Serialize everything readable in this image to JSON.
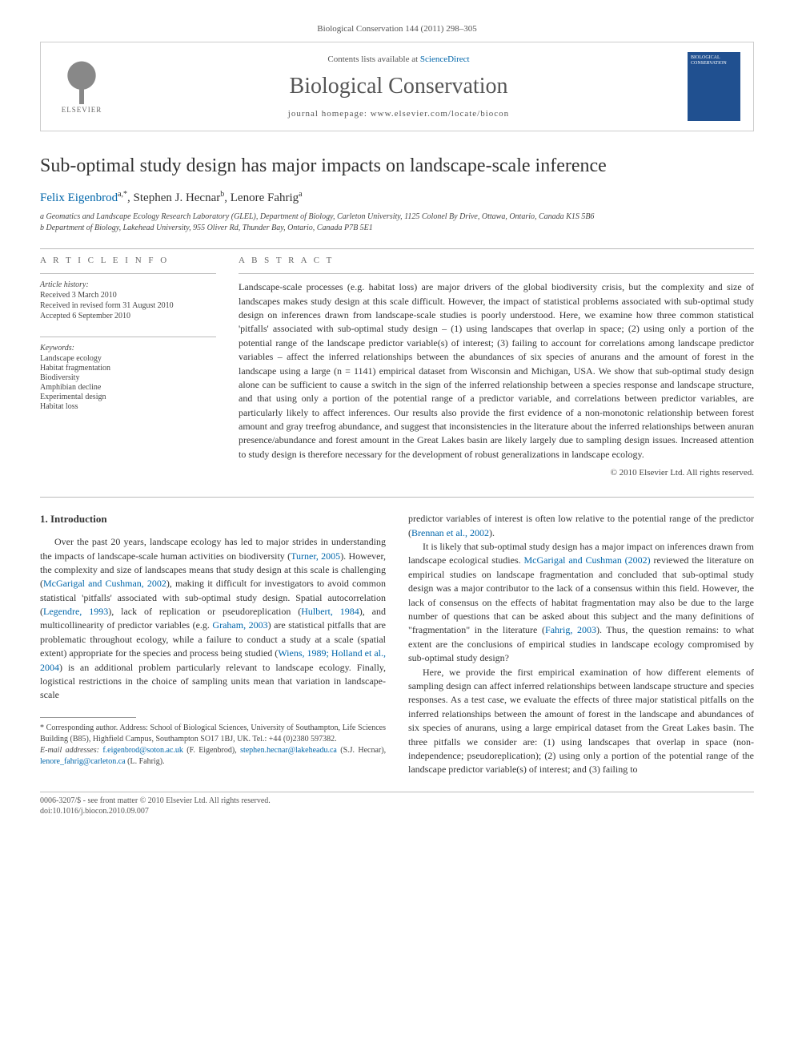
{
  "journal_ref": "Biological Conservation 144 (2011) 298–305",
  "header": {
    "contents_prefix": "Contents lists available at ",
    "contents_link": "ScienceDirect",
    "journal_title": "Biological Conservation",
    "homepage_prefix": "journal homepage: ",
    "homepage_url": "www.elsevier.com/locate/biocon",
    "publisher": "ELSEVIER",
    "cover_label": "BIOLOGICAL CONSERVATION"
  },
  "title": "Sub-optimal study design has major impacts on landscape-scale inference",
  "authors_html": "Felix Eigenbrod",
  "authors": [
    {
      "name": "Felix Eigenbrod",
      "sup": "a,*",
      "link": true
    },
    {
      "name": "Stephen J. Hecnar",
      "sup": "b",
      "link": false
    },
    {
      "name": "Lenore Fahrig",
      "sup": "a",
      "link": false
    }
  ],
  "affiliations": [
    "a Geomatics and Landscape Ecology Research Laboratory (GLEL), Department of Biology, Carleton University, 1125 Colonel By Drive, Ottawa, Ontario, Canada K1S 5B6",
    "b Department of Biology, Lakehead University, 955 Oliver Rd, Thunder Bay, Ontario, Canada P7B 5E1"
  ],
  "article_info_heading": "A R T I C L E   I N F O",
  "history": {
    "label": "Article history:",
    "lines": [
      "Received 3 March 2010",
      "Received in revised form 31 August 2010",
      "Accepted 6 September 2010"
    ]
  },
  "keywords": {
    "label": "Keywords:",
    "items": [
      "Landscape ecology",
      "Habitat fragmentation",
      "Biodiversity",
      "Amphibian decline",
      "Experimental design",
      "Habitat loss"
    ]
  },
  "abstract_heading": "A B S T R A C T",
  "abstract": "Landscape-scale processes (e.g. habitat loss) are major drivers of the global biodiversity crisis, but the complexity and size of landscapes makes study design at this scale difficult. However, the impact of statistical problems associated with sub-optimal study design on inferences drawn from landscape-scale studies is poorly understood. Here, we examine how three common statistical 'pitfalls' associated with sub-optimal study design – (1) using landscapes that overlap in space; (2) using only a portion of the potential range of the landscape predictor variable(s) of interest; (3) failing to account for correlations among landscape predictor variables – affect the inferred relationships between the abundances of six species of anurans and the amount of forest in the landscape using a large (n = 1141) empirical dataset from Wisconsin and Michigan, USA. We show that sub-optimal study design alone can be sufficient to cause a switch in the sign of the inferred relationship between a species response and landscape structure, and that using only a portion of the potential range of a predictor variable, and correlations between predictor variables, are particularly likely to affect inferences. Our results also provide the first evidence of a non-monotonic relationship between forest amount and gray treefrog abundance, and suggest that inconsistencies in the literature about the inferred relationships between anuran presence/abundance and forest amount in the Great Lakes basin are likely largely due to sampling design issues. Increased attention to study design is therefore necessary for the development of robust generalizations in landscape ecology.",
  "copyright": "© 2010 Elsevier Ltd. All rights reserved.",
  "section1_heading": "1. Introduction",
  "intro_para1_pre": "Over the past 20 years, landscape ecology has led to major strides in understanding the impacts of landscape-scale human activities on biodiversity (",
  "intro_cite_turner": "Turner, 2005",
  "intro_para1_mid1": "). However, the complexity and size of landscapes means that study design at this scale is challenging (",
  "intro_cite_mcgarigal": "McGarigal and Cushman, 2002",
  "intro_para1_mid2": "), making it difficult for investigators to avoid common statistical 'pitfalls' associated with sub-optimal study design. Spatial autocorrelation (",
  "intro_cite_legendre": "Legendre, 1993",
  "intro_para1_mid3": "), lack of replication or pseudoreplication (",
  "intro_cite_hulbert": "Hulbert, 1984",
  "intro_para1_mid4": "), and multicollinearity of predictor variables (e.g. ",
  "intro_cite_graham": "Graham, 2003",
  "intro_para1_mid5": ") are statistical pitfalls that are problematic throughout ecology, while a failure to conduct a study at a scale (spatial extent) appropriate for the species and process being studied (",
  "intro_cite_wiens": "Wiens, 1989; Holland et al., 2004",
  "intro_para1_post": ") is an additional problem particularly relevant to landscape ecology. Finally, logistical restrictions in the choice of sampling units mean that variation in landscape-scale",
  "col2_para1_pre": "predictor variables of interest is often low relative to the potential range of the predictor (",
  "col2_cite_brennan": "Brennan et al., 2002",
  "col2_para1_post": ").",
  "col2_para2_pre": "It is likely that sub-optimal study design has a major impact on inferences drawn from landscape ecological studies. ",
  "col2_cite_mcgarigal2": "McGarigal and Cushman (2002)",
  "col2_para2_mid": " reviewed the literature on empirical studies on landscape fragmentation and concluded that sub-optimal study design was a major contributor to the lack of a consensus within this field. However, the lack of consensus on the effects of habitat fragmentation may also be due to the large number of questions that can be asked about this subject and the many definitions of \"fragmentation\" in the literature (",
  "col2_cite_fahrig": "Fahrig, 2003",
  "col2_para2_post": "). Thus, the question remains: to what extent are the conclusions of empirical studies in landscape ecology compromised by sub-optimal study design?",
  "col2_para3": "Here, we provide the first empirical examination of how different elements of sampling design can affect inferred relationships between landscape structure and species responses. As a test case, we evaluate the effects of three major statistical pitfalls on the inferred relationships between the amount of forest in the landscape and abundances of six species of anurans, using a large empirical dataset from the Great Lakes basin. The three pitfalls we consider are: (1) using landscapes that overlap in space (non-independence; pseudoreplication); (2) using only a portion of the potential range of the landscape predictor variable(s) of interest; and (3) failing to",
  "footnotes": {
    "corresponding": "* Corresponding author. Address: School of Biological Sciences, University of Southampton, Life Sciences Building (B85), Highfield Campus, Southampton SO17 1BJ, UK. Tel.: +44 (0)2380 597382.",
    "email_label": "E-mail addresses:",
    "emails": [
      {
        "addr": "f.eigenbrod@soton.ac.uk",
        "who": "(F. Eigenbrod)"
      },
      {
        "addr": "stephen.hecnar@lakeheadu.ca",
        "who": "(S.J. Hecnar)"
      },
      {
        "addr": "lenore_fahrig@carleton.ca",
        "who": "(L. Fahrig)"
      }
    ]
  },
  "footer": {
    "line1": "0006-3207/$ - see front matter © 2010 Elsevier Ltd. All rights reserved.",
    "line2": "doi:10.1016/j.biocon.2010.09.007"
  },
  "colors": {
    "link": "#0066aa",
    "text": "#333333",
    "muted": "#555555",
    "border": "#cccccc",
    "cover_bg": "#205090"
  }
}
